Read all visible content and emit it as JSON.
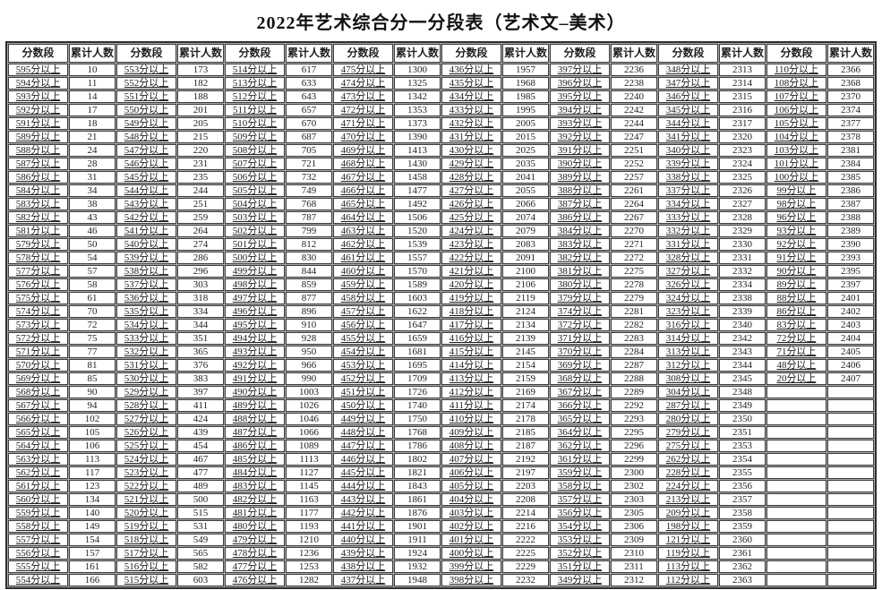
{
  "title": "2022年艺术综合分一分段表（艺术文–美术）",
  "table": {
    "score_header": "分数段",
    "count_header": "累计人数",
    "num_pairs": 8,
    "num_rows": 39,
    "pairs": [
      {
        "rows": [
          [
            "595分以上",
            "10"
          ],
          [
            "594分以上",
            "11"
          ],
          [
            "593分以上",
            "14"
          ],
          [
            "592分以上",
            "17"
          ],
          [
            "591分以上",
            "18"
          ],
          [
            "589分以上",
            "21"
          ],
          [
            "588分以上",
            "24"
          ],
          [
            "587分以上",
            "28"
          ],
          [
            "586分以上",
            "31"
          ],
          [
            "584分以上",
            "34"
          ],
          [
            "583分以上",
            "38"
          ],
          [
            "582分以上",
            "43"
          ],
          [
            "581分以上",
            "46"
          ],
          [
            "579分以上",
            "50"
          ],
          [
            "578分以上",
            "54"
          ],
          [
            "577分以上",
            "57"
          ],
          [
            "576分以上",
            "58"
          ],
          [
            "575分以上",
            "61"
          ],
          [
            "574分以上",
            "70"
          ],
          [
            "573分以上",
            "72"
          ],
          [
            "572分以上",
            "75"
          ],
          [
            "571分以上",
            "77"
          ],
          [
            "570分以上",
            "81"
          ],
          [
            "569分以上",
            "85"
          ],
          [
            "568分以上",
            "90"
          ],
          [
            "567分以上",
            "94"
          ],
          [
            "566分以上",
            "102"
          ],
          [
            "565分以上",
            "105"
          ],
          [
            "564分以上",
            "106"
          ],
          [
            "563分以上",
            "113"
          ],
          [
            "562分以上",
            "117"
          ],
          [
            "561分以上",
            "123"
          ],
          [
            "560分以上",
            "134"
          ],
          [
            "559分以上",
            "140"
          ],
          [
            "558分以上",
            "149"
          ],
          [
            "557分以上",
            "154"
          ],
          [
            "556分以上",
            "157"
          ],
          [
            "555分以上",
            "161"
          ],
          [
            "554分以上",
            "166"
          ]
        ]
      },
      {
        "rows": [
          [
            "553分以上",
            "173"
          ],
          [
            "552分以上",
            "182"
          ],
          [
            "551分以上",
            "188"
          ],
          [
            "550分以上",
            "201"
          ],
          [
            "549分以上",
            "205"
          ],
          [
            "548分以上",
            "215"
          ],
          [
            "547分以上",
            "220"
          ],
          [
            "546分以上",
            "231"
          ],
          [
            "545分以上",
            "235"
          ],
          [
            "544分以上",
            "244"
          ],
          [
            "543分以上",
            "251"
          ],
          [
            "542分以上",
            "259"
          ],
          [
            "541分以上",
            "264"
          ],
          [
            "540分以上",
            "274"
          ],
          [
            "539分以上",
            "286"
          ],
          [
            "538分以上",
            "296"
          ],
          [
            "537分以上",
            "303"
          ],
          [
            "536分以上",
            "318"
          ],
          [
            "535分以上",
            "334"
          ],
          [
            "534分以上",
            "344"
          ],
          [
            "533分以上",
            "351"
          ],
          [
            "532分以上",
            "365"
          ],
          [
            "531分以上",
            "376"
          ],
          [
            "530分以上",
            "383"
          ],
          [
            "529分以上",
            "397"
          ],
          [
            "528分以上",
            "411"
          ],
          [
            "527分以上",
            "424"
          ],
          [
            "526分以上",
            "439"
          ],
          [
            "525分以上",
            "454"
          ],
          [
            "524分以上",
            "467"
          ],
          [
            "523分以上",
            "477"
          ],
          [
            "522分以上",
            "489"
          ],
          [
            "521分以上",
            "500"
          ],
          [
            "520分以上",
            "515"
          ],
          [
            "519分以上",
            "531"
          ],
          [
            "518分以上",
            "549"
          ],
          [
            "517分以上",
            "565"
          ],
          [
            "516分以上",
            "582"
          ],
          [
            "515分以上",
            "603"
          ]
        ]
      },
      {
        "rows": [
          [
            "514分以上",
            "617"
          ],
          [
            "513分以上",
            "633"
          ],
          [
            "512分以上",
            "643"
          ],
          [
            "511分以上",
            "657"
          ],
          [
            "510分以上",
            "670"
          ],
          [
            "509分以上",
            "687"
          ],
          [
            "508分以上",
            "705"
          ],
          [
            "507分以上",
            "721"
          ],
          [
            "506分以上",
            "732"
          ],
          [
            "505分以上",
            "749"
          ],
          [
            "504分以上",
            "768"
          ],
          [
            "503分以上",
            "787"
          ],
          [
            "502分以上",
            "799"
          ],
          [
            "501分以上",
            "812"
          ],
          [
            "500分以上",
            "830"
          ],
          [
            "499分以上",
            "844"
          ],
          [
            "498分以上",
            "859"
          ],
          [
            "497分以上",
            "877"
          ],
          [
            "496分以上",
            "896"
          ],
          [
            "495分以上",
            "910"
          ],
          [
            "494分以上",
            "928"
          ],
          [
            "493分以上",
            "950"
          ],
          [
            "492分以上",
            "966"
          ],
          [
            "491分以上",
            "990"
          ],
          [
            "490分以上",
            "1003"
          ],
          [
            "489分以上",
            "1026"
          ],
          [
            "488分以上",
            "1046"
          ],
          [
            "487分以上",
            "1066"
          ],
          [
            "486分以上",
            "1089"
          ],
          [
            "485分以上",
            "1113"
          ],
          [
            "484分以上",
            "1127"
          ],
          [
            "483分以上",
            "1145"
          ],
          [
            "482分以上",
            "1163"
          ],
          [
            "481分以上",
            "1177"
          ],
          [
            "480分以上",
            "1193"
          ],
          [
            "479分以上",
            "1210"
          ],
          [
            "478分以上",
            "1236"
          ],
          [
            "477分以上",
            "1253"
          ],
          [
            "476分以上",
            "1282"
          ]
        ]
      },
      {
        "rows": [
          [
            "475分以上",
            "1300"
          ],
          [
            "474分以上",
            "1325"
          ],
          [
            "473分以上",
            "1342"
          ],
          [
            "472分以上",
            "1353"
          ],
          [
            "471分以上",
            "1373"
          ],
          [
            "470分以上",
            "1390"
          ],
          [
            "469分以上",
            "1413"
          ],
          [
            "468分以上",
            "1430"
          ],
          [
            "467分以上",
            "1458"
          ],
          [
            "466分以上",
            "1477"
          ],
          [
            "465分以上",
            "1492"
          ],
          [
            "464分以上",
            "1506"
          ],
          [
            "463分以上",
            "1520"
          ],
          [
            "462分以上",
            "1539"
          ],
          [
            "461分以上",
            "1557"
          ],
          [
            "460分以上",
            "1570"
          ],
          [
            "459分以上",
            "1589"
          ],
          [
            "458分以上",
            "1603"
          ],
          [
            "457分以上",
            "1622"
          ],
          [
            "456分以上",
            "1647"
          ],
          [
            "455分以上",
            "1659"
          ],
          [
            "454分以上",
            "1681"
          ],
          [
            "453分以上",
            "1695"
          ],
          [
            "452分以上",
            "1709"
          ],
          [
            "451分以上",
            "1726"
          ],
          [
            "450分以上",
            "1740"
          ],
          [
            "449分以上",
            "1750"
          ],
          [
            "448分以上",
            "1768"
          ],
          [
            "447分以上",
            "1786"
          ],
          [
            "446分以上",
            "1802"
          ],
          [
            "445分以上",
            "1821"
          ],
          [
            "444分以上",
            "1843"
          ],
          [
            "443分以上",
            "1861"
          ],
          [
            "442分以上",
            "1876"
          ],
          [
            "441分以上",
            "1901"
          ],
          [
            "440分以上",
            "1911"
          ],
          [
            "439分以上",
            "1924"
          ],
          [
            "438分以上",
            "1932"
          ],
          [
            "437分以上",
            "1948"
          ]
        ]
      },
      {
        "rows": [
          [
            "436分以上",
            "1957"
          ],
          [
            "435分以上",
            "1968"
          ],
          [
            "434分以上",
            "1985"
          ],
          [
            "433分以上",
            "1995"
          ],
          [
            "432分以上",
            "2005"
          ],
          [
            "431分以上",
            "2015"
          ],
          [
            "430分以上",
            "2025"
          ],
          [
            "429分以上",
            "2035"
          ],
          [
            "428分以上",
            "2041"
          ],
          [
            "427分以上",
            "2055"
          ],
          [
            "426分以上",
            "2066"
          ],
          [
            "425分以上",
            "2074"
          ],
          [
            "424分以上",
            "2079"
          ],
          [
            "423分以上",
            "2083"
          ],
          [
            "422分以上",
            "2091"
          ],
          [
            "421分以上",
            "2100"
          ],
          [
            "420分以上",
            "2106"
          ],
          [
            "419分以上",
            "2119"
          ],
          [
            "418分以上",
            "2124"
          ],
          [
            "417分以上",
            "2134"
          ],
          [
            "416分以上",
            "2139"
          ],
          [
            "415分以上",
            "2145"
          ],
          [
            "414分以上",
            "2154"
          ],
          [
            "413分以上",
            "2159"
          ],
          [
            "412分以上",
            "2169"
          ],
          [
            "411分以上",
            "2174"
          ],
          [
            "410分以上",
            "2178"
          ],
          [
            "409分以上",
            "2185"
          ],
          [
            "408分以上",
            "2187"
          ],
          [
            "407分以上",
            "2192"
          ],
          [
            "406分以上",
            "2197"
          ],
          [
            "405分以上",
            "2203"
          ],
          [
            "404分以上",
            "2208"
          ],
          [
            "403分以上",
            "2214"
          ],
          [
            "402分以上",
            "2216"
          ],
          [
            "401分以上",
            "2222"
          ],
          [
            "400分以上",
            "2225"
          ],
          [
            "399分以上",
            "2229"
          ],
          [
            "398分以上",
            "2232"
          ]
        ]
      },
      {
        "rows": [
          [
            "397分以上",
            "2236"
          ],
          [
            "396分以上",
            "2238"
          ],
          [
            "395分以上",
            "2240"
          ],
          [
            "394分以上",
            "2242"
          ],
          [
            "393分以上",
            "2244"
          ],
          [
            "392分以上",
            "2247"
          ],
          [
            "391分以上",
            "2251"
          ],
          [
            "390分以上",
            "2252"
          ],
          [
            "389分以上",
            "2257"
          ],
          [
            "388分以上",
            "2261"
          ],
          [
            "387分以上",
            "2264"
          ],
          [
            "386分以上",
            "2267"
          ],
          [
            "384分以上",
            "2270"
          ],
          [
            "383分以上",
            "2271"
          ],
          [
            "382分以上",
            "2272"
          ],
          [
            "381分以上",
            "2275"
          ],
          [
            "380分以上",
            "2278"
          ],
          [
            "379分以上",
            "2279"
          ],
          [
            "374分以上",
            "2281"
          ],
          [
            "372分以上",
            "2282"
          ],
          [
            "371分以上",
            "2283"
          ],
          [
            "370分以上",
            "2284"
          ],
          [
            "369分以上",
            "2287"
          ],
          [
            "368分以上",
            "2288"
          ],
          [
            "367分以上",
            "2289"
          ],
          [
            "366分以上",
            "2292"
          ],
          [
            "365分以上",
            "2293"
          ],
          [
            "364分以上",
            "2295"
          ],
          [
            "362分以上",
            "2296"
          ],
          [
            "361分以上",
            "2299"
          ],
          [
            "359分以上",
            "2300"
          ],
          [
            "358分以上",
            "2302"
          ],
          [
            "357分以上",
            "2303"
          ],
          [
            "356分以上",
            "2305"
          ],
          [
            "354分以上",
            "2306"
          ],
          [
            "353分以上",
            "2309"
          ],
          [
            "352分以上",
            "2310"
          ],
          [
            "351分以上",
            "2311"
          ],
          [
            "349分以上",
            "2312"
          ]
        ]
      },
      {
        "rows": [
          [
            "348分以上",
            "2313"
          ],
          [
            "347分以上",
            "2314"
          ],
          [
            "346分以上",
            "2315"
          ],
          [
            "345分以上",
            "2316"
          ],
          [
            "344分以上",
            "2317"
          ],
          [
            "341分以上",
            "2320"
          ],
          [
            "340分以上",
            "2323"
          ],
          [
            "339分以上",
            "2324"
          ],
          [
            "338分以上",
            "2325"
          ],
          [
            "337分以上",
            "2326"
          ],
          [
            "334分以上",
            "2327"
          ],
          [
            "333分以上",
            "2328"
          ],
          [
            "332分以上",
            "2329"
          ],
          [
            "331分以上",
            "2330"
          ],
          [
            "328分以上",
            "2331"
          ],
          [
            "327分以上",
            "2332"
          ],
          [
            "326分以上",
            "2334"
          ],
          [
            "324分以上",
            "2338"
          ],
          [
            "323分以上",
            "2339"
          ],
          [
            "316分以上",
            "2340"
          ],
          [
            "314分以上",
            "2342"
          ],
          [
            "313分以上",
            "2343"
          ],
          [
            "312分以上",
            "2344"
          ],
          [
            "308分以上",
            "2345"
          ],
          [
            "304分以上",
            "2348"
          ],
          [
            "287分以上",
            "2349"
          ],
          [
            "280分以上",
            "2350"
          ],
          [
            "279分以上",
            "2351"
          ],
          [
            "275分以上",
            "2353"
          ],
          [
            "262分以上",
            "2354"
          ],
          [
            "228分以上",
            "2355"
          ],
          [
            "224分以上",
            "2356"
          ],
          [
            "213分以上",
            "2357"
          ],
          [
            "209分以上",
            "2358"
          ],
          [
            "198分以上",
            "2359"
          ],
          [
            "121分以上",
            "2360"
          ],
          [
            "119分以上",
            "2361"
          ],
          [
            "113分以上",
            "2362"
          ],
          [
            "112分以上",
            "2363"
          ]
        ]
      },
      {
        "rows": [
          [
            "110分以上",
            "2366"
          ],
          [
            "108分以上",
            "2368"
          ],
          [
            "107分以上",
            "2370"
          ],
          [
            "106分以上",
            "2374"
          ],
          [
            "105分以上",
            "2377"
          ],
          [
            "104分以上",
            "2378"
          ],
          [
            "103分以上",
            "2381"
          ],
          [
            "101分以上",
            "2384"
          ],
          [
            "100分以上",
            "2385"
          ],
          [
            "99分以上",
            "2386"
          ],
          [
            "98分以上",
            "2387"
          ],
          [
            "96分以上",
            "2388"
          ],
          [
            "93分以上",
            "2389"
          ],
          [
            "92分以上",
            "2390"
          ],
          [
            "91分以上",
            "2393"
          ],
          [
            "90分以上",
            "2395"
          ],
          [
            "89分以上",
            "2397"
          ],
          [
            "88分以上",
            "2401"
          ],
          [
            "86分以上",
            "2402"
          ],
          [
            "83分以上",
            "2403"
          ],
          [
            "72分以上",
            "2404"
          ],
          [
            "71分以上",
            "2405"
          ],
          [
            "48分以上",
            "2406"
          ],
          [
            "20分以上",
            "2407"
          ]
        ]
      }
    ]
  }
}
